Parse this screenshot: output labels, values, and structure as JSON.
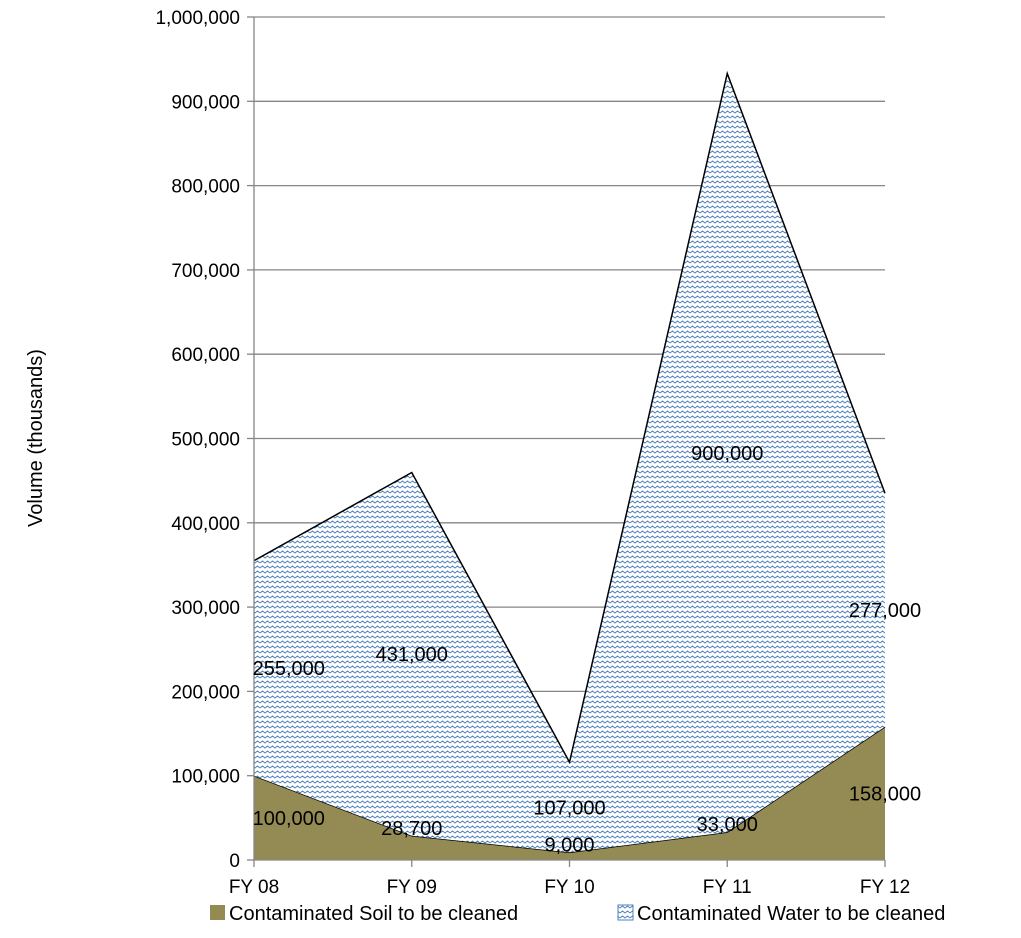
{
  "chart_data": {
    "type": "area",
    "stacked": true,
    "title": "",
    "xlabel": "",
    "ylabel": "Volume (thousands)",
    "categories": [
      "FY 08",
      "FY 09",
      "FY 10",
      "FY 11",
      "FY 12"
    ],
    "ylim": [
      0,
      1000000
    ],
    "yticks": [
      0,
      100000,
      200000,
      300000,
      400000,
      500000,
      600000,
      700000,
      800000,
      900000,
      1000000
    ],
    "ytick_labels": [
      "0",
      "100,000",
      "200,000",
      "300,000",
      "400,000",
      "500,000",
      "600,000",
      "700,000",
      "800,000",
      "900,000",
      "1,000,000"
    ],
    "grid": "horizontal",
    "legend_position": "bottom",
    "series": [
      {
        "name": "Contaminated Soil to be cleaned",
        "values": [
          100000,
          28700,
          9000,
          33000,
          158000
        ],
        "labels": [
          "100,000",
          "28,700",
          "9,000",
          "33,000",
          "158,000"
        ],
        "color": "#948a54",
        "pattern": "solid"
      },
      {
        "name": "Contaminated Water to be cleaned",
        "values": [
          255000,
          431000,
          107000,
          900000,
          277000
        ],
        "labels": [
          "255,000",
          "431,000",
          "107,000",
          "900,000",
          "277,000"
        ],
        "color": "#4f81bd",
        "pattern": "wave"
      }
    ]
  }
}
